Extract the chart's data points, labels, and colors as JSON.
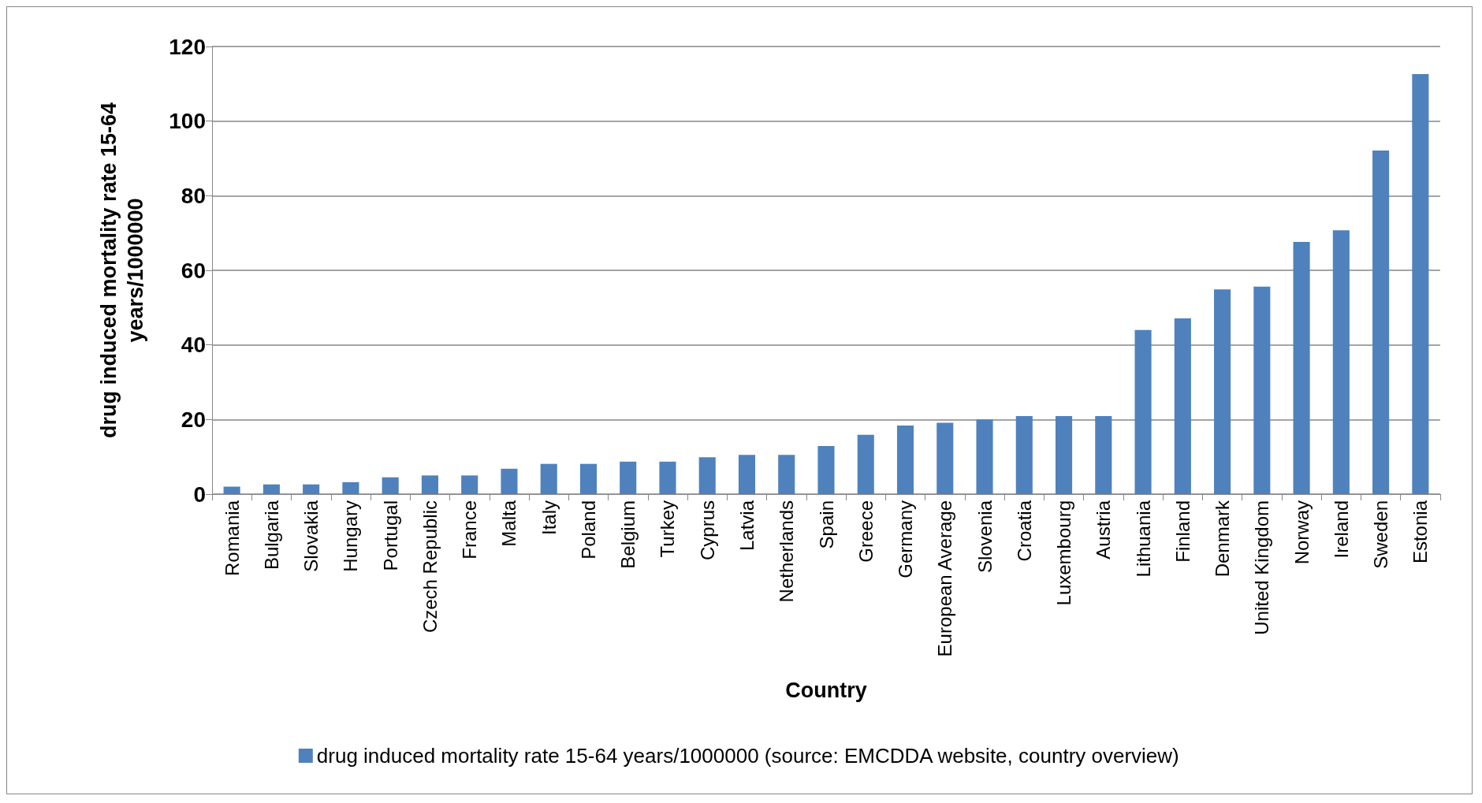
{
  "chart_data": {
    "type": "bar",
    "xlabel": "Country",
    "ylabel": "drug induced mortality rate 15-64\nyears/1000000",
    "categories": [
      "Romania",
      "Bulgaria",
      "Slovakia",
      "Hungary",
      "Portugal",
      "Czech Republic",
      "France",
      "Malta",
      "Italy",
      "Poland",
      "Belgium",
      "Turkey",
      "Cyprus",
      "Latvia",
      "Netherlands",
      "Spain",
      "Greece",
      "Germany",
      "European Average",
      "Slovenia",
      "Croatia",
      "Luxembourg",
      "Austria",
      "Lithuania",
      "Finland",
      "Denmark",
      "United Kingdom",
      "Norway",
      "Ireland",
      "Sweden",
      "Estonia"
    ],
    "series": [
      {
        "name": "drug induced mortality rate 15-64 years/1000000 (source: EMCDDA website, country overview)",
        "color": "#4f81bd",
        "values": [
          2.0,
          2.6,
          2.6,
          3.2,
          4.5,
          5.0,
          5.0,
          6.8,
          8.1,
          8.1,
          8.7,
          8.7,
          9.9,
          10.5,
          10.5,
          12.9,
          15.9,
          18.4,
          19.1,
          20.0,
          20.9,
          20.9,
          20.9,
          44.0,
          47.1,
          54.9,
          55.6,
          67.6,
          70.7,
          92.1,
          112.6
        ]
      }
    ],
    "ylim": [
      0,
      120
    ],
    "yticks": [
      0,
      20,
      40,
      60,
      80,
      100,
      120
    ],
    "grid": "y",
    "legend": "bottom"
  }
}
